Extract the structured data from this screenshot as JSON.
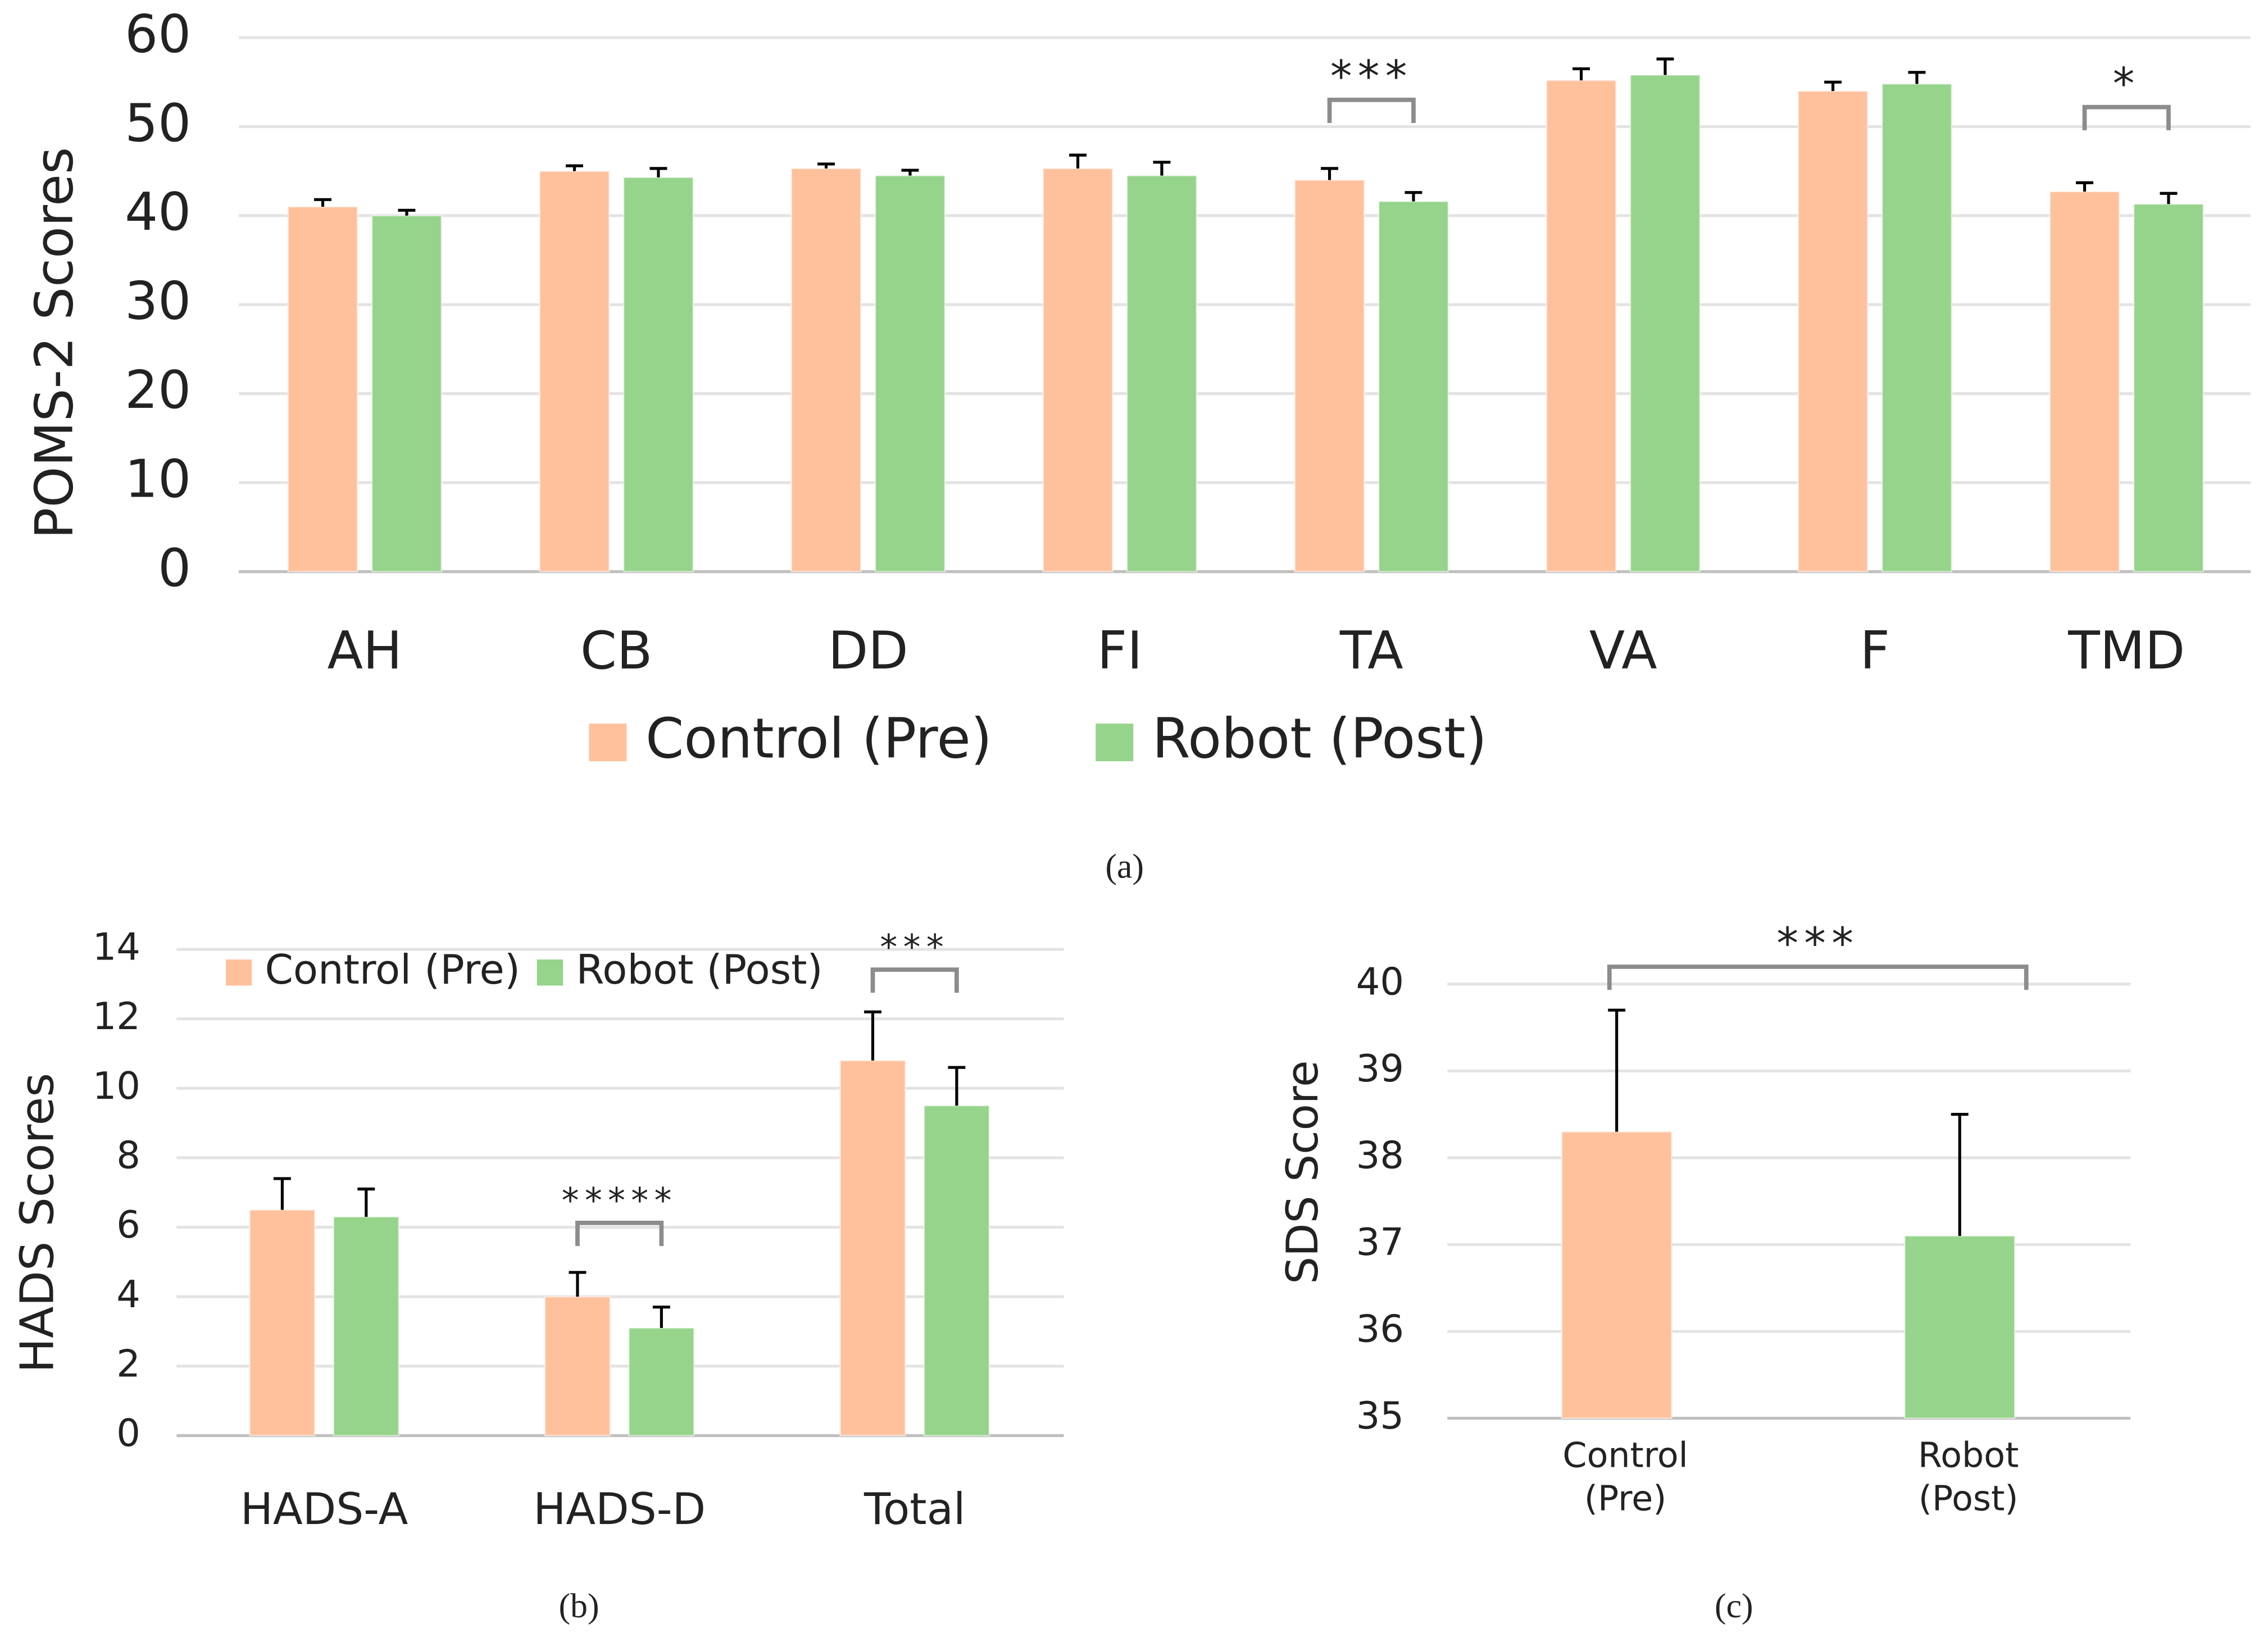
{
  "chart_data": [
    {
      "type": "bar",
      "label": "(a)",
      "y_label": "POMS-2 Scores",
      "categories": [
        "AH",
        "CB",
        "DD",
        "FI",
        "TA",
        "VA",
        "F",
        "TMD"
      ],
      "series": [
        {
          "name": "Control (Pre)",
          "color": "#ffc19c",
          "values": [
            41,
            45,
            45.3,
            45.3,
            44,
            55.2,
            54,
            42.7
          ],
          "errors": [
            0.8,
            0.6,
            0.5,
            1.5,
            1.3,
            1.3,
            1.0,
            1.0
          ]
        },
        {
          "name": "Robot (Post)",
          "color": "#96d38b",
          "values": [
            40,
            44.3,
            44.5,
            44.5,
            41.6,
            55.8,
            54.8,
            41.3
          ],
          "errors": [
            0.6,
            1.0,
            0.6,
            1.5,
            1.0,
            1.8,
            1.3,
            1.2
          ]
        }
      ],
      "ylim": [
        0,
        60
      ],
      "yticks": [
        0,
        10,
        20,
        30,
        40,
        50,
        60
      ],
      "grid": true,
      "annotations": [
        {
          "text": "***",
          "category": "TA"
        },
        {
          "text": "*",
          "category": "TMD"
        }
      ]
    },
    {
      "type": "bar",
      "label": "(b)",
      "y_label": "HADS Scores",
      "categories": [
        "HADS-A",
        "HADS-D",
        "Total"
      ],
      "series": [
        {
          "name": "Control (Pre)",
          "color": "#ffc19c",
          "values": [
            6.5,
            4.0,
            10.8
          ],
          "errors": [
            0.9,
            0.7,
            1.4
          ]
        },
        {
          "name": "Robot (Post)",
          "color": "#96d38b",
          "values": [
            6.3,
            3.1,
            9.5
          ],
          "errors": [
            0.8,
            0.6,
            1.1
          ]
        }
      ],
      "ylim": [
        0,
        14
      ],
      "yticks": [
        0,
        2,
        4,
        6,
        8,
        10,
        12,
        14
      ],
      "grid": true,
      "annotations": [
        {
          "text": "*****",
          "category": "HADS-D"
        },
        {
          "text": "***",
          "category": "Total"
        }
      ]
    },
    {
      "type": "bar",
      "label": "(c)",
      "y_label": "SDS Score",
      "categories": [
        [
          "Control",
          "(Pre)"
        ],
        [
          "Robot",
          "(Post)"
        ]
      ],
      "values": [
        38.3,
        37.1
      ],
      "errors": [
        1.4,
        1.4
      ],
      "colors": [
        "#ffc19c",
        "#96d38b"
      ],
      "ylim": [
        35,
        40
      ],
      "yticks": [
        35,
        36,
        37,
        38,
        39,
        40
      ],
      "grid": true,
      "annotations": [
        {
          "text": "***"
        }
      ]
    }
  ]
}
